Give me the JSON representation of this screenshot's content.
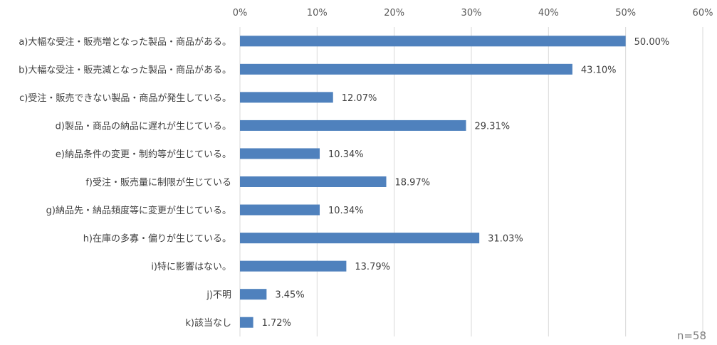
{
  "chart_data": {
    "type": "bar",
    "orientation": "horizontal",
    "categories": [
      "a)大幅な受注・販売増となった製品・商品がある。",
      "b)大幅な受注・販売減となった製品・商品がある。",
      "c)受注・販売できない製品・商品が発生している。",
      "d)製品・商品の納品に遅れが生じている。",
      "e)納品条件の変更・制約等が生じている。",
      "f)受注・販売量に制限が生じている",
      "g)納品先・納品頻度等に変更が生じている。",
      "h)在庫の多寡・偏りが生じている。",
      "i)特に影響はない。",
      "j)不明",
      "k)該当なし"
    ],
    "values": [
      50.0,
      43.1,
      12.07,
      29.31,
      10.34,
      18.97,
      10.34,
      31.03,
      13.79,
      3.45,
      1.72
    ],
    "value_labels": [
      "50.00%",
      "43.10%",
      "12.07%",
      "29.31%",
      "10.34%",
      "18.97%",
      "10.34%",
      "31.03%",
      "13.79%",
      "3.45%",
      "1.72%"
    ],
    "x_ticks": [
      0,
      10,
      20,
      30,
      40,
      50,
      60
    ],
    "x_tick_labels": [
      "0%",
      "10%",
      "20%",
      "30%",
      "40%",
      "50%",
      "60%"
    ],
    "xlim": [
      0,
      60
    ],
    "xaxis_position": "top",
    "grid": true,
    "bar_color": "#4f81bd",
    "grid_color": "#d9d9d9",
    "note": "n=58"
  }
}
